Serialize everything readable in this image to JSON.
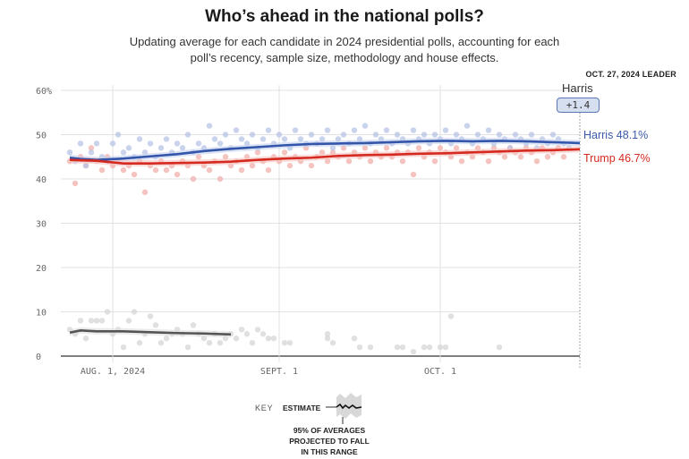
{
  "title": "Who’s ahead in the national polls?",
  "subtitle": "Updating average for each candidate in 2024 presidential polls, accounting for each poll’s recency, sample size, methodology and house effects.",
  "leader": {
    "heading": "OCT. 27, 2024 LEADER",
    "name": "Harris",
    "margin": "+1.4"
  },
  "end_labels": {
    "harris": "Harris 48.1%",
    "trump": "Trump 46.7%"
  },
  "key": {
    "label": "KEY",
    "estimate": "ESTIMATE",
    "note": "95% OF AVERAGES PROJECTED TO FALL IN THIS RANGE"
  },
  "colors": {
    "harris": "#3355aa",
    "trump": "#d42a20",
    "other": "#555555",
    "harris_dot": "#b7c4e6",
    "trump_dot": "#f1b0ab",
    "other_dot": "#d6d6d6"
  },
  "chart_data": {
    "type": "line",
    "title": "Who’s ahead in the national polls?",
    "xlabel": "",
    "ylabel": "%",
    "ylim": [
      0,
      60
    ],
    "yticks": [
      "0",
      "10",
      "20",
      "30",
      "40",
      "50",
      "60%"
    ],
    "ytick_values": [
      0,
      10,
      20,
      30,
      40,
      50,
      60
    ],
    "xticks": [
      {
        "label": "AUG. 1, 2024",
        "day": 8
      },
      {
        "label": "SEPT. 1",
        "day": 39
      },
      {
        "label": "OCT. 1",
        "day": 69
      }
    ],
    "x_range_days": [
      0,
      95
    ],
    "x_start_date": "2024-07-24",
    "grid": true,
    "series": [
      {
        "name": "Harris",
        "final": 48.1,
        "days": [
          0,
          2,
          5,
          10,
          15,
          20,
          25,
          30,
          35,
          40,
          45,
          50,
          55,
          60,
          65,
          70,
          75,
          80,
          85,
          90,
          95
        ],
        "values": [
          44.8,
          44.5,
          44.3,
          44.6,
          45.1,
          45.6,
          46.3,
          46.8,
          47.2,
          47.6,
          47.9,
          48.0,
          48.1,
          48.3,
          48.5,
          48.6,
          48.5,
          48.6,
          48.5,
          48.3,
          48.1
        ]
      },
      {
        "name": "Trump",
        "final": 46.7,
        "days": [
          0,
          2,
          5,
          10,
          15,
          20,
          25,
          30,
          35,
          40,
          45,
          50,
          55,
          60,
          65,
          70,
          75,
          80,
          85,
          90,
          95
        ],
        "values": [
          44.3,
          44.2,
          44.1,
          43.5,
          43.5,
          43.6,
          43.7,
          43.9,
          44.3,
          44.6,
          44.8,
          45.2,
          45.4,
          45.5,
          45.7,
          45.8,
          46.0,
          46.2,
          46.4,
          46.5,
          46.7
        ]
      },
      {
        "name": "Other",
        "final": null,
        "days": [
          0,
          2,
          5,
          10,
          15,
          20,
          25,
          30
        ],
        "values": [
          5.3,
          5.8,
          5.6,
          5.6,
          5.4,
          5.2,
          5.1,
          4.9
        ]
      }
    ],
    "polls": {
      "Harris": [
        [
          0,
          46
        ],
        [
          1,
          44
        ],
        [
          2,
          48
        ],
        [
          3,
          43
        ],
        [
          4,
          46
        ],
        [
          5,
          48
        ],
        [
          6,
          45
        ],
        [
          7,
          44
        ],
        [
          8,
          48
        ],
        [
          9,
          50
        ],
        [
          10,
          46
        ],
        [
          11,
          47
        ],
        [
          12,
          45
        ],
        [
          13,
          49
        ],
        [
          14,
          46
        ],
        [
          15,
          48
        ],
        [
          16,
          45
        ],
        [
          17,
          47
        ],
        [
          18,
          49
        ],
        [
          19,
          46
        ],
        [
          20,
          48
        ],
        [
          21,
          47
        ],
        [
          22,
          50
        ],
        [
          23,
          46
        ],
        [
          24,
          48
        ],
        [
          25,
          47
        ],
        [
          26,
          52
        ],
        [
          27,
          49
        ],
        [
          28,
          48
        ],
        [
          29,
          50
        ],
        [
          30,
          47
        ],
        [
          31,
          51
        ],
        [
          32,
          49
        ],
        [
          33,
          48
        ],
        [
          34,
          50
        ],
        [
          35,
          47
        ],
        [
          36,
          49
        ],
        [
          37,
          51
        ],
        [
          38,
          48
        ],
        [
          39,
          50
        ],
        [
          40,
          49
        ],
        [
          41,
          47
        ],
        [
          42,
          51
        ],
        [
          43,
          49
        ],
        [
          44,
          48
        ],
        [
          45,
          50
        ],
        [
          46,
          48
        ],
        [
          47,
          49
        ],
        [
          48,
          51
        ],
        [
          49,
          47
        ],
        [
          50,
          49
        ],
        [
          51,
          50
        ],
        [
          52,
          48
        ],
        [
          53,
          51
        ],
        [
          54,
          49
        ],
        [
          55,
          52
        ],
        [
          56,
          48
        ],
        [
          57,
          50
        ],
        [
          58,
          49
        ],
        [
          59,
          51
        ],
        [
          60,
          48
        ],
        [
          61,
          50
        ],
        [
          62,
          49
        ],
        [
          63,
          48
        ],
        [
          64,
          51
        ],
        [
          65,
          49
        ],
        [
          66,
          50
        ],
        [
          67,
          48
        ],
        [
          68,
          50
        ],
        [
          69,
          49
        ],
        [
          70,
          51
        ],
        [
          71,
          48
        ],
        [
          72,
          50
        ],
        [
          73,
          49
        ],
        [
          74,
          52
        ],
        [
          75,
          48
        ],
        [
          76,
          50
        ],
        [
          77,
          49
        ],
        [
          78,
          51
        ],
        [
          79,
          48
        ],
        [
          80,
          50
        ],
        [
          81,
          49
        ],
        [
          82,
          47
        ],
        [
          83,
          50
        ],
        [
          84,
          49
        ],
        [
          85,
          48
        ],
        [
          86,
          50
        ],
        [
          87,
          47
        ],
        [
          88,
          49
        ],
        [
          89,
          48
        ],
        [
          90,
          50
        ],
        [
          91,
          49
        ],
        [
          92,
          48
        ],
        [
          93,
          47
        ]
      ],
      "Trump": [
        [
          0,
          44
        ],
        [
          1,
          39
        ],
        [
          2,
          45
        ],
        [
          3,
          43
        ],
        [
          4,
          47
        ],
        [
          5,
          44
        ],
        [
          6,
          42
        ],
        [
          7,
          45
        ],
        [
          8,
          43
        ],
        [
          9,
          44
        ],
        [
          10,
          42
        ],
        [
          11,
          43
        ],
        [
          12,
          41
        ],
        [
          13,
          44
        ],
        [
          14,
          37
        ],
        [
          15,
          43
        ],
        [
          16,
          42
        ],
        [
          17,
          44
        ],
        [
          18,
          42
        ],
        [
          19,
          43
        ],
        [
          20,
          41
        ],
        [
          21,
          44
        ],
        [
          22,
          43
        ],
        [
          23,
          40
        ],
        [
          24,
          45
        ],
        [
          25,
          43
        ],
        [
          26,
          42
        ],
        [
          27,
          44
        ],
        [
          28,
          40
        ],
        [
          29,
          45
        ],
        [
          30,
          43
        ],
        [
          31,
          44
        ],
        [
          32,
          42
        ],
        [
          33,
          45
        ],
        [
          34,
          43
        ],
        [
          35,
          46
        ],
        [
          36,
          44
        ],
        [
          37,
          42
        ],
        [
          38,
          45
        ],
        [
          39,
          44
        ],
        [
          40,
          46
        ],
        [
          41,
          43
        ],
        [
          42,
          45
        ],
        [
          43,
          44
        ],
        [
          44,
          47
        ],
        [
          45,
          43
        ],
        [
          46,
          45
        ],
        [
          47,
          46
        ],
        [
          48,
          44
        ],
        [
          49,
          46
        ],
        [
          50,
          45
        ],
        [
          51,
          47
        ],
        [
          52,
          44
        ],
        [
          53,
          46
        ],
        [
          54,
          45
        ],
        [
          55,
          47
        ],
        [
          56,
          44
        ],
        [
          57,
          46
        ],
        [
          58,
          45
        ],
        [
          59,
          47
        ],
        [
          60,
          45
        ],
        [
          61,
          46
        ],
        [
          62,
          44
        ],
        [
          63,
          46
        ],
        [
          64,
          41
        ],
        [
          65,
          47
        ],
        [
          66,
          45
        ],
        [
          67,
          46
        ],
        [
          68,
          44
        ],
        [
          69,
          47
        ],
        [
          70,
          46
        ],
        [
          71,
          45
        ],
        [
          72,
          47
        ],
        [
          73,
          44
        ],
        [
          74,
          46
        ],
        [
          75,
          45
        ],
        [
          76,
          47
        ],
        [
          77,
          46
        ],
        [
          78,
          44
        ],
        [
          79,
          47
        ],
        [
          80,
          46
        ],
        [
          81,
          45
        ],
        [
          82,
          47
        ],
        [
          83,
          46
        ],
        [
          84,
          45
        ],
        [
          85,
          47
        ],
        [
          86,
          46
        ],
        [
          87,
          44
        ],
        [
          88,
          47
        ],
        [
          89,
          45
        ],
        [
          90,
          46
        ],
        [
          91,
          47
        ],
        [
          92,
          45
        ]
      ],
      "Other": [
        [
          0,
          6
        ],
        [
          1,
          5
        ],
        [
          2,
          8
        ],
        [
          3,
          4
        ],
        [
          4,
          8
        ],
        [
          5,
          8
        ],
        [
          6,
          8
        ],
        [
          7,
          10
        ],
        [
          8,
          5
        ],
        [
          9,
          6
        ],
        [
          10,
          2
        ],
        [
          11,
          8
        ],
        [
          12,
          10
        ],
        [
          13,
          3
        ],
        [
          14,
          5
        ],
        [
          15,
          9
        ],
        [
          16,
          7
        ],
        [
          17,
          3
        ],
        [
          18,
          4
        ],
        [
          19,
          5
        ],
        [
          20,
          6
        ],
        [
          21,
          5
        ],
        [
          22,
          2
        ],
        [
          23,
          7
        ],
        [
          24,
          5
        ],
        [
          25,
          4
        ],
        [
          26,
          3
        ],
        [
          27,
          5
        ],
        [
          28,
          3
        ],
        [
          29,
          4
        ],
        [
          30,
          5
        ],
        [
          31,
          4
        ],
        [
          32,
          6
        ],
        [
          33,
          5
        ],
        [
          34,
          3
        ],
        [
          35,
          6
        ],
        [
          36,
          5
        ],
        [
          37,
          4
        ],
        [
          38,
          4
        ],
        [
          40,
          3
        ],
        [
          41,
          3
        ],
        [
          48,
          4
        ],
        [
          48,
          5
        ],
        [
          49,
          3
        ],
        [
          53,
          4
        ],
        [
          54,
          2
        ],
        [
          56,
          2
        ],
        [
          61,
          2
        ],
        [
          62,
          2
        ],
        [
          64,
          1
        ],
        [
          66,
          2
        ],
        [
          67,
          2
        ],
        [
          69,
          2
        ],
        [
          70,
          2
        ],
        [
          71,
          9
        ],
        [
          80,
          2
        ]
      ]
    }
  }
}
